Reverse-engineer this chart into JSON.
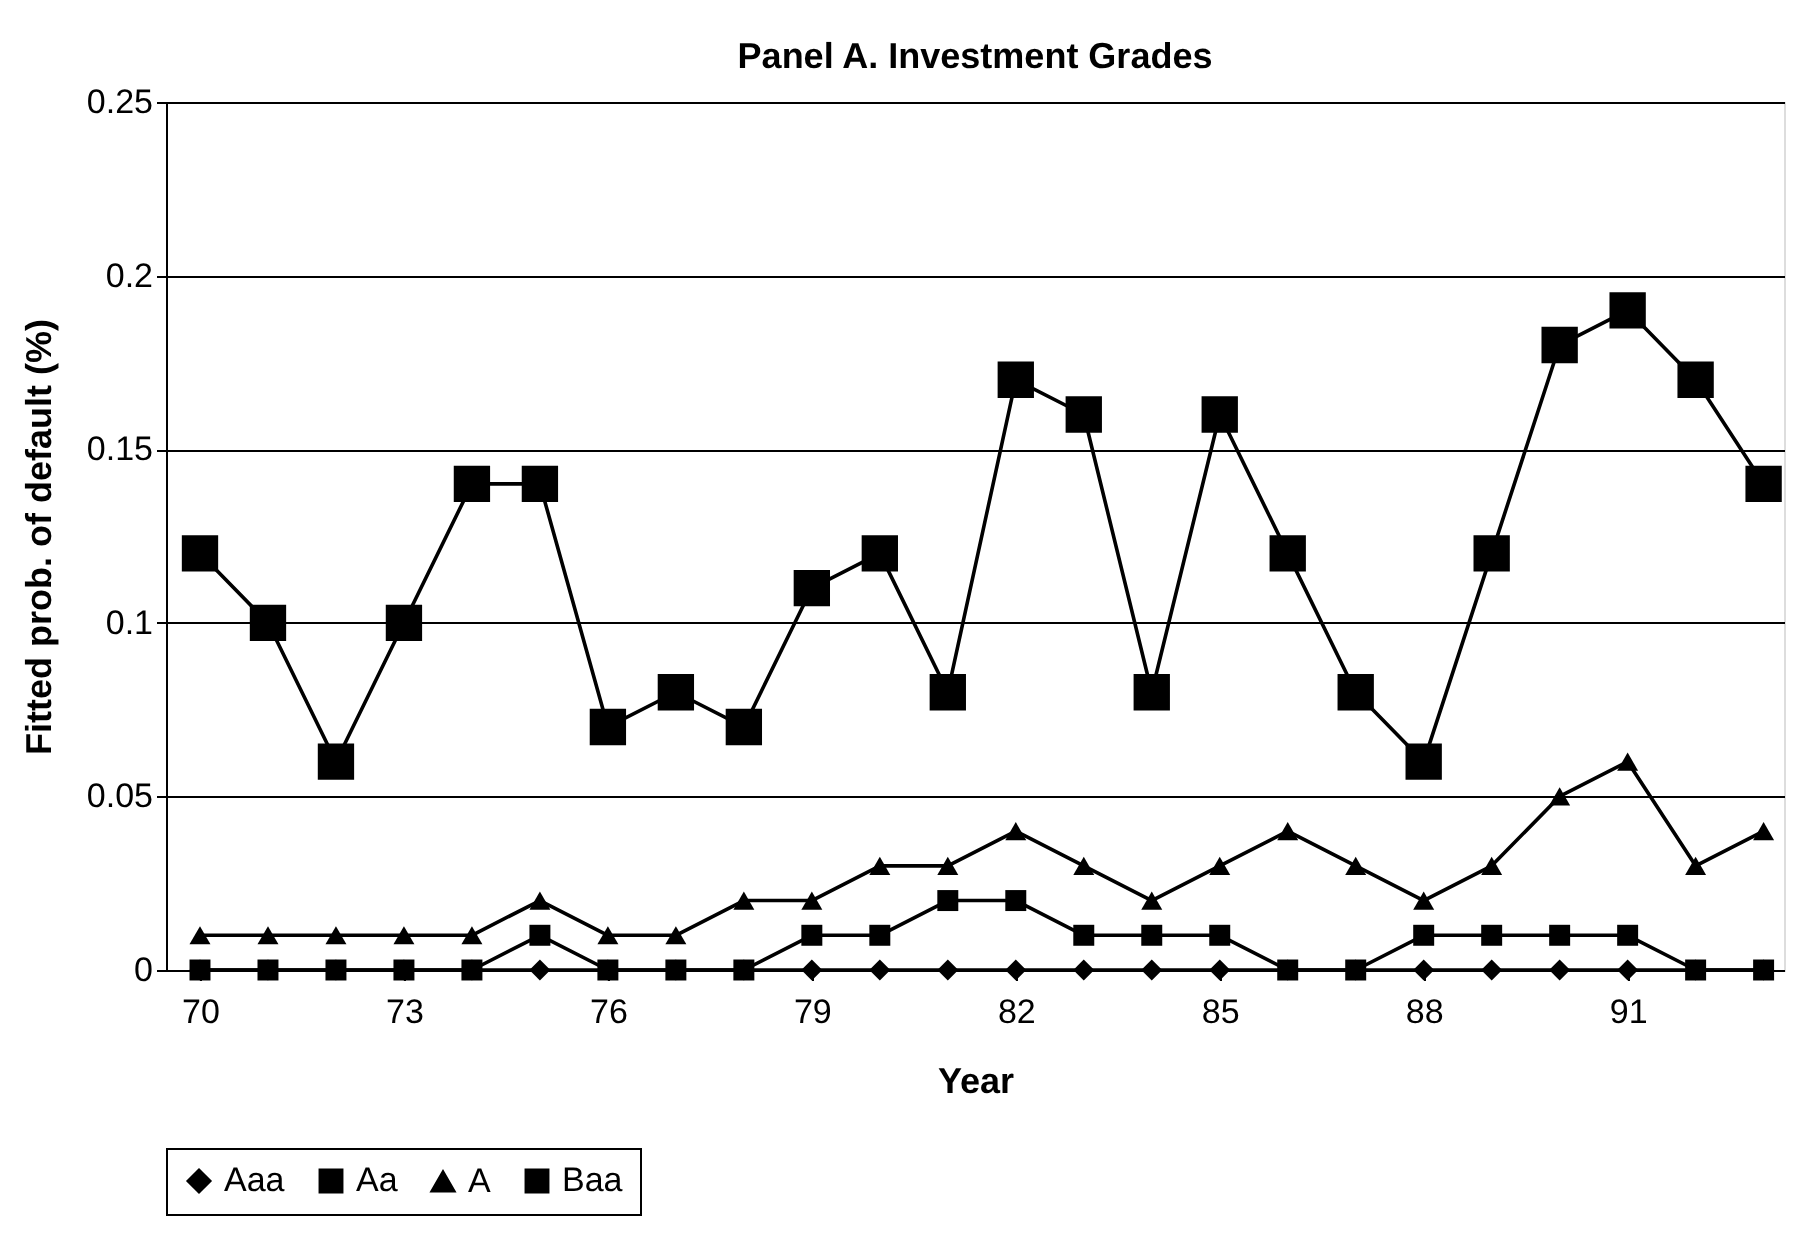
{
  "chart_data": {
    "type": "line",
    "title": "Panel A.  Investment Grades",
    "xlabel": "Year",
    "ylabel": "Fitted prob. of default (%)",
    "x": [
      70,
      71,
      72,
      73,
      74,
      75,
      76,
      77,
      78,
      79,
      80,
      81,
      82,
      83,
      84,
      85,
      86,
      87,
      88,
      89,
      90,
      91,
      92,
      93
    ],
    "series": [
      {
        "name": "Aaa",
        "color": "#000000",
        "marker": "diamond",
        "values": [
          0,
          0,
          0,
          0,
          0,
          0,
          0,
          0,
          0,
          0,
          0,
          0,
          0,
          0,
          0,
          0,
          0,
          0,
          0,
          0,
          0,
          0,
          0,
          0
        ]
      },
      {
        "name": "Aa",
        "color": "#000000",
        "marker": "square",
        "values": [
          0,
          0,
          0,
          0,
          0,
          0.01,
          0,
          0,
          0,
          0.01,
          0.01,
          0.02,
          0.02,
          0.01,
          0.01,
          0.01,
          0,
          0,
          0.01,
          0.01,
          0.01,
          0.01,
          0,
          0
        ]
      },
      {
        "name": "A",
        "color": "#000000",
        "marker": "triangle",
        "values": [
          0.01,
          0.01,
          0.01,
          0.01,
          0.01,
          0.02,
          0.01,
          0.01,
          0.02,
          0.02,
          0.03,
          0.03,
          0.04,
          0.03,
          0.02,
          0.03,
          0.04,
          0.03,
          0.02,
          0.03,
          0.05,
          0.06,
          0.03,
          0.04
        ]
      },
      {
        "name": "Baa",
        "color": "#000000",
        "marker": "square",
        "values": [
          0.12,
          0.1,
          0.06,
          0.1,
          0.14,
          0.14,
          0.07,
          0.08,
          0.07,
          0.11,
          0.12,
          0.08,
          0.17,
          0.16,
          0.08,
          0.16,
          0.12,
          0.08,
          0.06,
          0.12,
          0.18,
          0.19,
          0.17,
          0.14
        ]
      }
    ],
    "xlim": [
      69.5,
      93.3
    ],
    "xticks": [
      70,
      73,
      76,
      79,
      82,
      85,
      88,
      91
    ],
    "ylim": [
      0,
      0.25
    ],
    "yticks": [
      0,
      0.05,
      0.1,
      0.15,
      0.2,
      0.25
    ],
    "grid": "y",
    "legend": "bottom",
    "line_style": "solid"
  }
}
